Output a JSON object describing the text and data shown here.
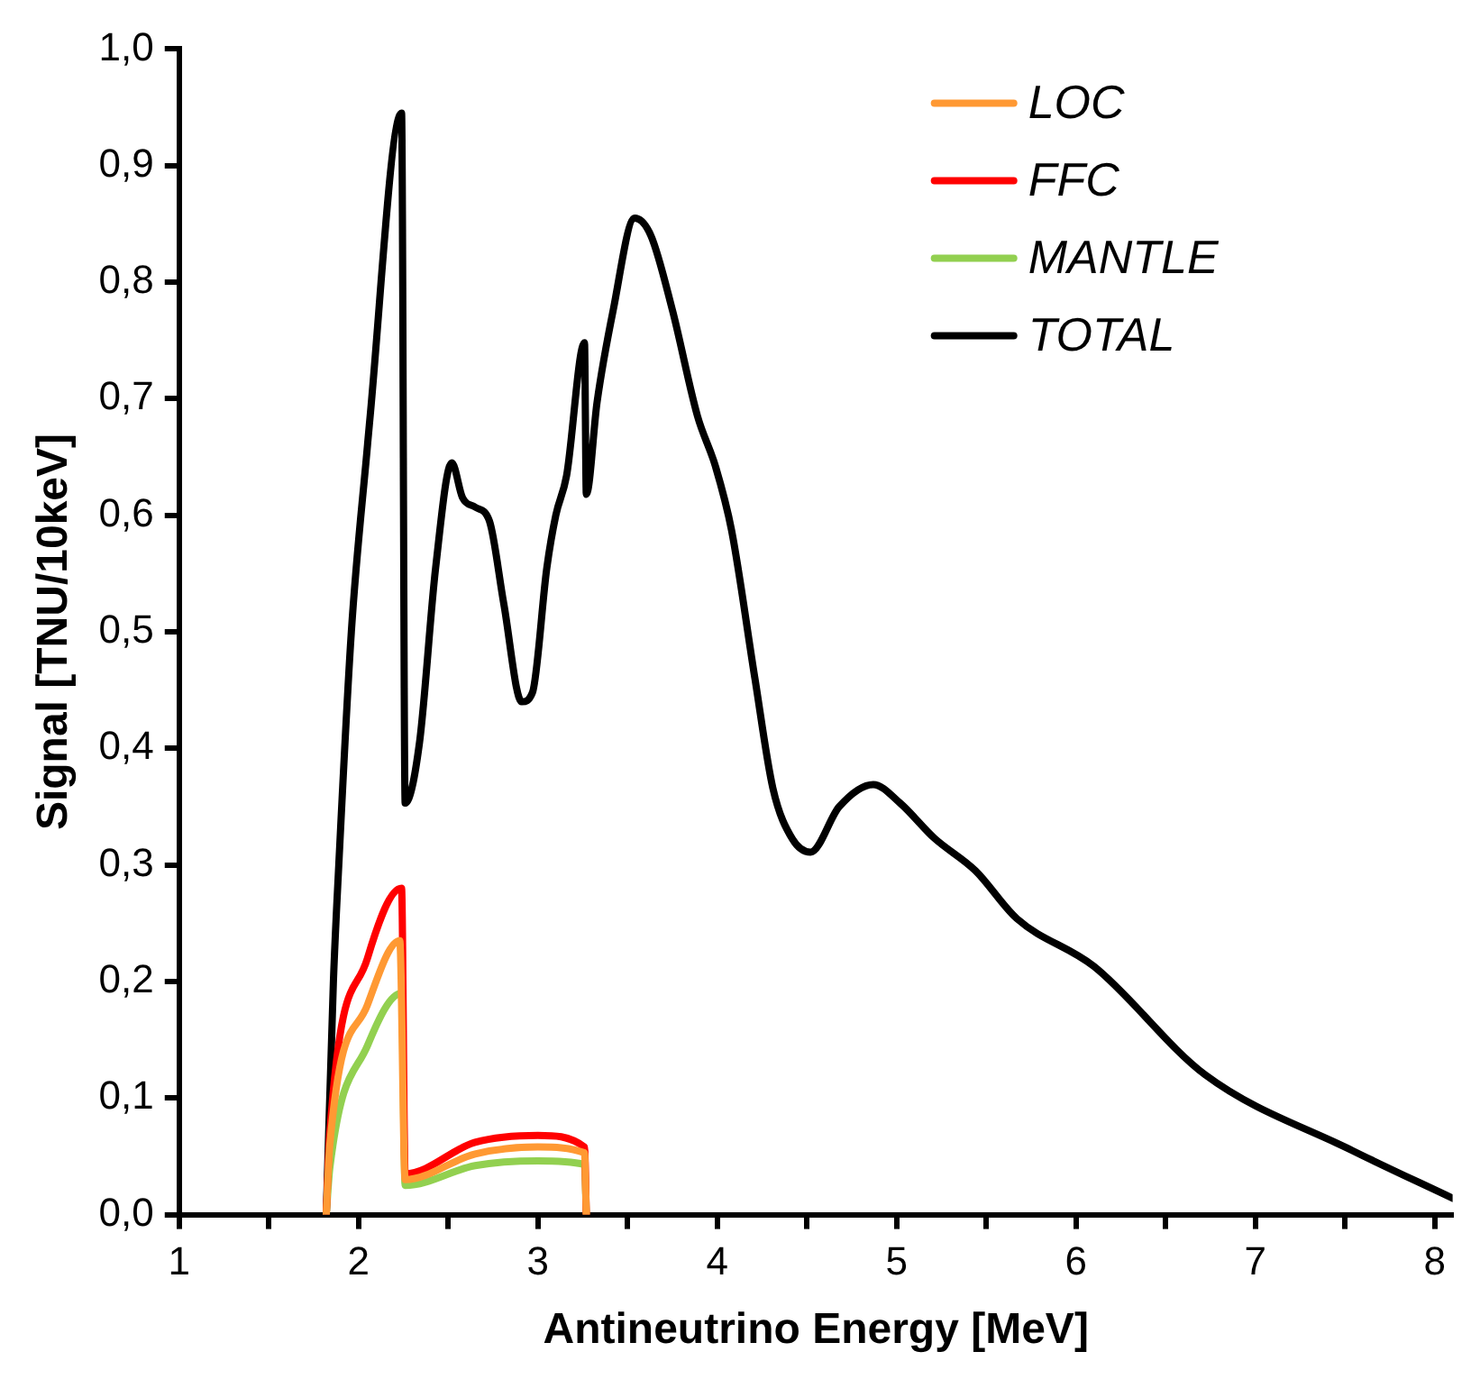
{
  "chart_data": {
    "type": "line",
    "xlabel": "Antineutrino Energy [MeV]",
    "ylabel": "Signal [TNU/10keV]",
    "xlim": [
      1,
      8.1
    ],
    "ylim": [
      0,
      1
    ],
    "xticks": [
      1,
      {
        "value": 1.5,
        "label": null
      },
      2,
      {
        "value": 2.5,
        "label": null
      },
      3,
      {
        "value": 3.5,
        "label": null
      },
      4,
      {
        "value": 4.5,
        "label": null
      },
      5,
      {
        "value": 5.5,
        "label": null
      },
      6,
      {
        "value": 6.5,
        "label": null
      },
      7,
      {
        "value": 7.5,
        "label": null
      },
      8
    ],
    "yticks": [
      {
        "value": 0,
        "label": "0,0"
      },
      {
        "value": 0.1,
        "label": "0,1"
      },
      {
        "value": 0.2,
        "label": "0,2"
      },
      {
        "value": 0.3,
        "label": "0,3"
      },
      {
        "value": 0.4,
        "label": "0,4"
      },
      {
        "value": 0.5,
        "label": "0,5"
      },
      {
        "value": 0.6,
        "label": "0,6"
      },
      {
        "value": 0.7,
        "label": "0,7"
      },
      {
        "value": 0.8,
        "label": "0,8"
      },
      {
        "value": 0.9,
        "label": "0,9"
      },
      {
        "value": 1,
        "label": "1,0"
      }
    ],
    "grid": false,
    "legend": "top right",
    "marker": "none",
    "line_style": "solid",
    "series": [
      {
        "name": "LOC",
        "color": "#ff9933",
        "x": [
          1.82,
          1.84,
          2.05,
          2.23,
          2.26,
          2.65,
          3.0,
          3.26,
          3.27
        ],
        "values": [
          0,
          0.06,
          0.18,
          0.235,
          0.03,
          0.052,
          0.058,
          0.053,
          0
        ]
      },
      {
        "name": "FFC",
        "color": "#ff0000",
        "x": [
          1.82,
          1.84,
          2.05,
          2.24,
          2.26,
          2.65,
          3.0,
          3.26,
          3.27
        ],
        "values": [
          0,
          0.07,
          0.22,
          0.28,
          0.035,
          0.062,
          0.068,
          0.058,
          0
        ]
      },
      {
        "name": "MANTLE",
        "color": "#92d050",
        "x": [
          1.82,
          1.84,
          2.05,
          2.24,
          2.26,
          2.65,
          3.0,
          3.26,
          3.27
        ],
        "values": [
          0,
          0.04,
          0.145,
          0.19,
          0.025,
          0.042,
          0.046,
          0.043,
          0
        ]
      },
      {
        "name": "TOTAL",
        "color": "#000000",
        "x": [
          1.82,
          1.86,
          1.89,
          1.96,
          2.05,
          2.06,
          2.24,
          2.26,
          2.34,
          2.43,
          2.52,
          2.58,
          2.65,
          2.73,
          2.81,
          2.91,
          2.97,
          3.05,
          3.1,
          3.16,
          3.26,
          3.27,
          3.33,
          3.42,
          3.54,
          3.63,
          3.75,
          3.89,
          3.99,
          4.08,
          4.21,
          4.31,
          4.42,
          4.52,
          4.68,
          4.87,
          5.02,
          5.21,
          5.44,
          5.67,
          6.1,
          6.72,
          7.54,
          8.1
        ],
        "values": [
          0,
          0.2,
          0.3,
          0.5,
          0.66,
          0.677,
          0.945,
          0.353,
          0.405,
          0.555,
          0.645,
          0.615,
          0.607,
          0.595,
          0.524,
          0.44,
          0.448,
          0.555,
          0.6,
          0.634,
          0.748,
          0.618,
          0.697,
          0.776,
          0.855,
          0.84,
          0.776,
          0.685,
          0.642,
          0.587,
          0.46,
          0.366,
          0.322,
          0.311,
          0.35,
          0.369,
          0.353,
          0.323,
          0.295,
          0.254,
          0.213,
          0.12,
          0.055,
          0.014
        ]
      }
    ]
  }
}
